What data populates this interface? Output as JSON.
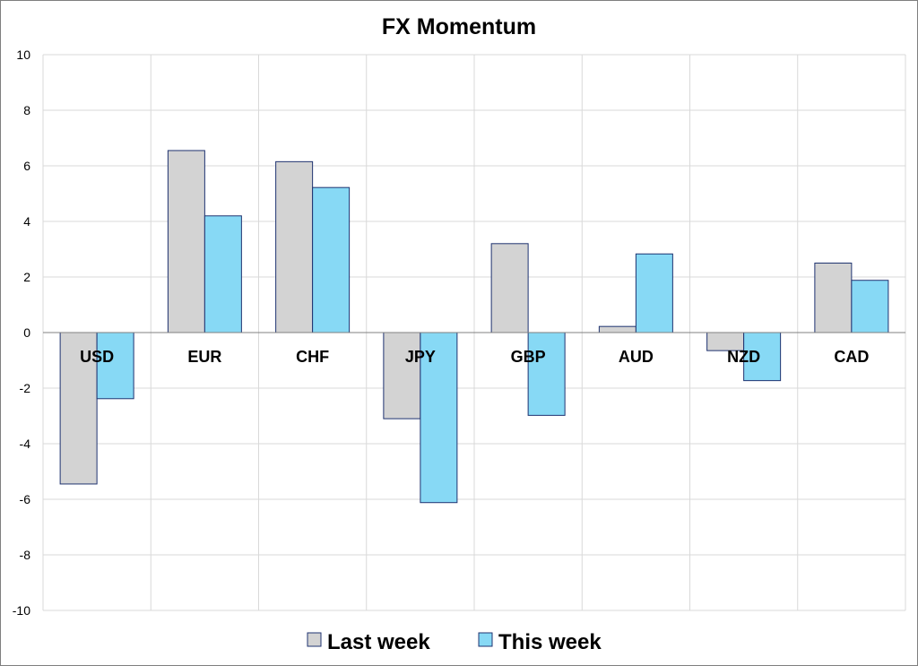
{
  "chart_data": {
    "type": "bar",
    "title": "FX Momentum",
    "xlabel": "",
    "ylabel": "",
    "categories": [
      "USD",
      "EUR",
      "CHF",
      "JPY",
      "GBP",
      "AUD",
      "NZD",
      "CAD"
    ],
    "series": [
      {
        "name": "Last week",
        "values": [
          -5.45,
          6.55,
          6.15,
          -3.1,
          3.2,
          0.22,
          -0.65,
          2.5
        ],
        "color": "#d3d3d3"
      },
      {
        "name": "This week",
        "values": [
          -2.38,
          4.2,
          5.22,
          -6.12,
          -2.98,
          2.83,
          -1.73,
          1.88
        ],
        "color": "#87d9f5"
      }
    ],
    "ylim": [
      -10,
      10
    ],
    "yticks": [
      "10",
      "8",
      "6",
      "4",
      "2",
      "0",
      "-2",
      "-4",
      "-6",
      "-8",
      "-10"
    ],
    "bar_outline_color": "#1f3370",
    "grid": true,
    "legend_position": "bottom"
  }
}
